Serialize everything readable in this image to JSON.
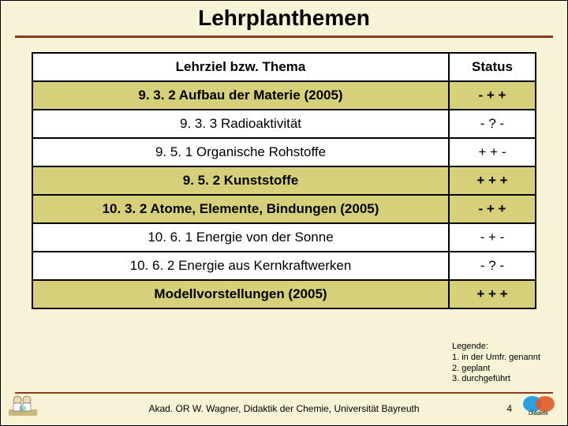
{
  "title": "Lehrplanthemen",
  "table": {
    "headers": {
      "topic": "Lehrziel bzw. Thema",
      "status": "Status"
    },
    "rows": [
      {
        "topic": "9. 3. 2 Aufbau der Materie (2005)",
        "status": "- + +",
        "highlight": true,
        "bold": true
      },
      {
        "topic": "9. 3. 3 Radioaktivität",
        "status": "- ? -",
        "highlight": false,
        "bold": false
      },
      {
        "topic": "9. 5. 1 Organische Rohstoffe",
        "status": "+ + -",
        "highlight": false,
        "bold": false
      },
      {
        "topic": "9. 5. 2 Kunststoffe",
        "status": "+ + +",
        "highlight": true,
        "bold": false
      },
      {
        "topic": "10. 3. 2 Atome, Elemente, Bindungen (2005)",
        "status": "- + +",
        "highlight": true,
        "bold": true
      },
      {
        "topic": "10. 6. 1 Energie von der Sonne",
        "status": "- + -",
        "highlight": false,
        "bold": false
      },
      {
        "topic": "10. 6. 2 Energie aus Kernkraftwerken",
        "status": "- ? -",
        "highlight": false,
        "bold": false
      },
      {
        "topic": "Modellvorstellungen (2005)",
        "status": "+ + +",
        "highlight": true,
        "bold": true
      }
    ]
  },
  "legend": {
    "heading": "Legende:",
    "items": [
      "1. in der Umfr. genannt",
      "2. geplant",
      "3. durchgeführt"
    ]
  },
  "footer": {
    "text": "Akad. OR W. Wagner, Didaktik der Chemie, Universität Bayreuth",
    "page": "4"
  },
  "colors": {
    "background": "#f7f3d6",
    "accent": "#8a3a1a",
    "highlight_row": "#d6d07a",
    "border": "#000000"
  }
}
